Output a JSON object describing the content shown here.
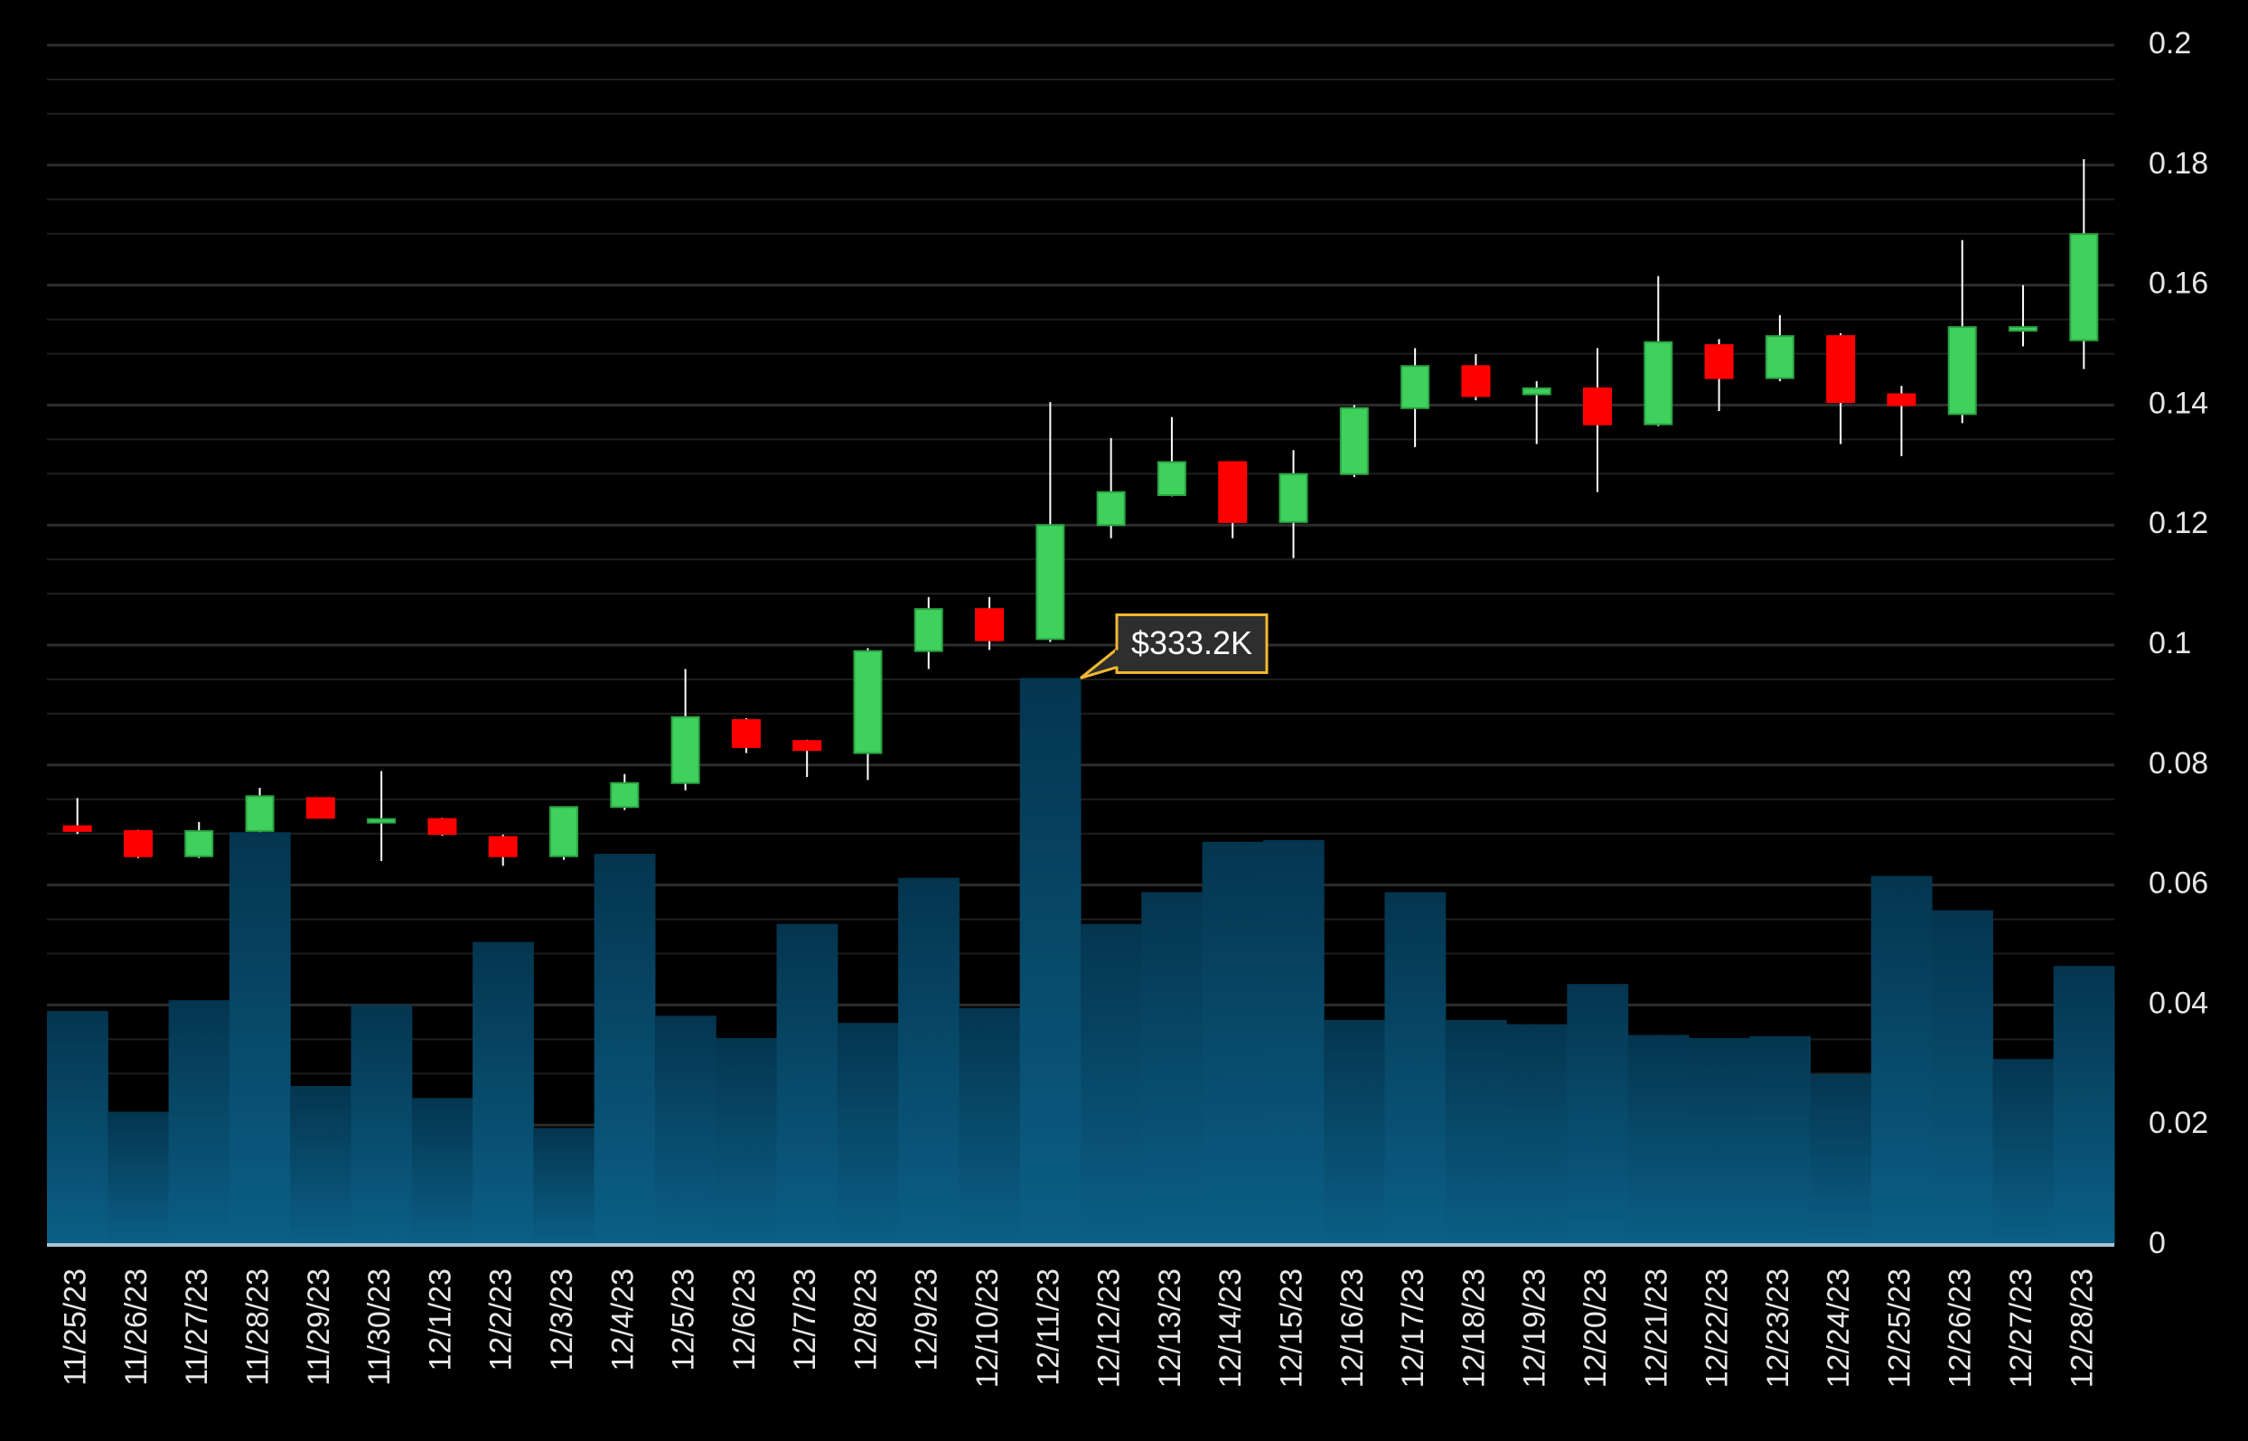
{
  "chart_data": {
    "type": "candlestick",
    "title": "",
    "xlabel": "",
    "ylabel": "",
    "ylim": [
      0,
      0.2
    ],
    "y_ticks": [
      "0",
      "0.02",
      "0.04",
      "0.06",
      "0.08",
      "0.1",
      "0.12",
      "0.14",
      "0.16",
      "0.18",
      "0.2"
    ],
    "y_axis_position": "right",
    "grid": true,
    "colors": {
      "up": "#3fd15c",
      "down": "#ff0000",
      "volume": "#0b5a80",
      "tooltip_border": "#f2b82e",
      "grid": "#2a2a2a"
    },
    "tooltip": {
      "label": "$333.2K",
      "category": "12/11/23"
    },
    "categories": [
      "11/25/23",
      "11/26/23",
      "11/27/23",
      "11/28/23",
      "11/29/23",
      "11/30/23",
      "12/1/23",
      "12/2/23",
      "12/3/23",
      "12/4/23",
      "12/5/23",
      "12/6/23",
      "12/7/23",
      "12/8/23",
      "12/9/23",
      "12/10/23",
      "12/11/23",
      "12/12/23",
      "12/13/23",
      "12/14/23",
      "12/15/23",
      "12/16/23",
      "12/17/23",
      "12/18/23",
      "12/19/23",
      "12/20/23",
      "12/21/23",
      "12/22/23",
      "12/23/23",
      "12/24/23",
      "12/25/23",
      "12/26/23",
      "12/27/23",
      "12/28/23"
    ],
    "open": [
      0.0698,
      0.069,
      0.0648,
      0.069,
      0.0745,
      0.071,
      0.071,
      0.068,
      0.0648,
      0.073,
      0.077,
      0.0875,
      0.084,
      0.082,
      0.099,
      0.106,
      0.101,
      0.12,
      0.125,
      0.1305,
      0.1205,
      0.1285,
      0.1395,
      0.1465,
      0.1418,
      0.1428,
      0.1368,
      0.15,
      0.1445,
      0.1515,
      0.1418,
      0.1385,
      0.153,
      0.1508
    ],
    "high": [
      0.0745,
      0.0692,
      0.0705,
      0.0762,
      0.0745,
      0.079,
      0.0712,
      0.0684,
      0.073,
      0.0785,
      0.096,
      0.0878,
      0.0842,
      0.0995,
      0.108,
      0.108,
      0.1405,
      0.1345,
      0.138,
      0.1305,
      0.1325,
      0.14,
      0.1495,
      0.1485,
      0.144,
      0.1495,
      0.1615,
      0.151,
      0.155,
      0.152,
      0.1432,
      0.1675,
      0.16,
      0.181
    ],
    "low": [
      0.0685,
      0.0645,
      0.0645,
      0.0688,
      0.0712,
      0.064,
      0.0682,
      0.0632,
      0.0642,
      0.0725,
      0.0758,
      0.082,
      0.078,
      0.0775,
      0.096,
      0.0992,
      0.1005,
      0.1178,
      0.1248,
      0.1178,
      0.1145,
      0.128,
      0.133,
      0.1408,
      0.1335,
      0.1255,
      0.1365,
      0.139,
      0.144,
      0.1335,
      0.1315,
      0.137,
      0.1498,
      0.146
    ],
    "close": [
      0.069,
      0.0648,
      0.069,
      0.0748,
      0.0712,
      0.071,
      0.0685,
      0.0648,
      0.073,
      0.077,
      0.088,
      0.083,
      0.0825,
      0.099,
      0.106,
      0.1008,
      0.12,
      0.1255,
      0.1305,
      0.1205,
      0.1285,
      0.1395,
      0.1465,
      0.1415,
      0.1428,
      0.1368,
      0.1505,
      0.1445,
      0.1515,
      0.1405,
      0.14,
      0.153,
      0.153,
      0.1685
    ],
    "volume": [
      0.039,
      0.0222,
      0.0408,
      0.0688,
      0.0265,
      0.04,
      0.0245,
      0.0505,
      0.0195,
      0.0652,
      0.0382,
      0.0345,
      0.0535,
      0.037,
      0.0612,
      0.0395,
      0.0945,
      0.0535,
      0.0588,
      0.0672,
      0.0675,
      0.0375,
      0.0588,
      0.0375,
      0.0368,
      0.0435,
      0.035,
      0.0345,
      0.0348,
      0.0285,
      0.0615,
      0.0558,
      0.031,
      0.0465
    ]
  }
}
